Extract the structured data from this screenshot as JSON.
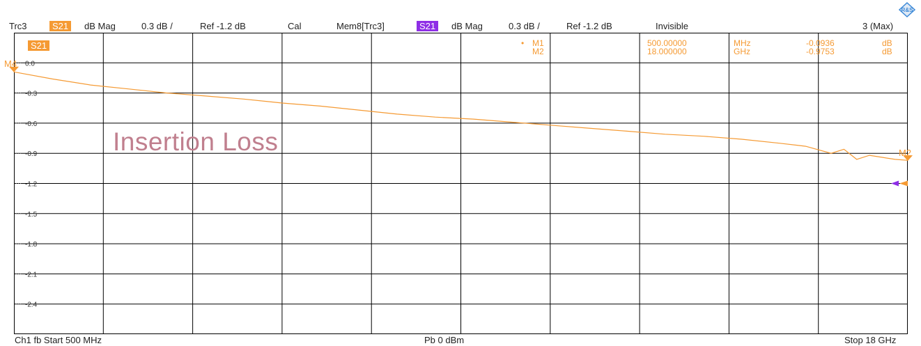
{
  "header": {
    "trace": "Trc3",
    "trace_param": "S21",
    "trace_format": "dB Mag",
    "trace_scale": "0.3 dB /",
    "trace_ref": "Ref -1.2 dB",
    "cal": "Cal",
    "mem": "Mem8[Trc3]",
    "mem_param": "S21",
    "mem_format": "dB Mag",
    "mem_scale": "0.3 dB /",
    "mem_ref": "Ref -1.2 dB",
    "visibility": "Invisible",
    "max_count": "3 (Max)"
  },
  "plot_label": "S21",
  "watermark": "Insertion Loss",
  "markers": {
    "m1": {
      "label": "M1",
      "bullet": "•",
      "freq": "500.00000",
      "freq_unit": "MHz",
      "value": "-0.0936",
      "value_unit": "dB"
    },
    "m2": {
      "label": "M2",
      "freq": "18.000000",
      "freq_unit": "GHz",
      "value": "-0.9753",
      "value_unit": "dB"
    },
    "left_label": "M4",
    "right_label": "M2"
  },
  "footer": {
    "left": "Ch1  fb  Start  500 MHz",
    "center": "Pb   0 dBm",
    "right": "Stop  18 GHz"
  },
  "colors": {
    "trace": "#f59a33",
    "trace_badge": "#f59a33",
    "mem_badge": "#8e2ee6",
    "grid": "#000000",
    "watermark": "#c07f8e"
  },
  "chart_data": {
    "type": "line",
    "title": "",
    "xlabel": "",
    "ylabel": "",
    "x_unit": "GHz",
    "xlim": [
      0.5,
      18.0
    ],
    "ylim": [
      -2.7,
      0.3
    ],
    "y_ticks": [
      0.0,
      -0.3,
      -0.6,
      -0.9,
      -1.2,
      -1.5,
      -1.8,
      -2.1,
      -2.4
    ],
    "y_tick_labels": [
      "0.0",
      "-0.3",
      "-0.6",
      "-0.9",
      "-1.2",
      "-1.5",
      "-1.8",
      "-2.1",
      "-2.4"
    ],
    "grid": true,
    "series": [
      {
        "name": "S21",
        "x": [
          0.5,
          1.25,
          2.0,
          2.75,
          3.5,
          4.25,
          5.0,
          5.75,
          6.5,
          7.25,
          8.0,
          8.75,
          9.5,
          10.25,
          11.0,
          11.75,
          12.5,
          13.25,
          14.0,
          14.75,
          15.5,
          16.0,
          16.5,
          16.75,
          17.0,
          17.25,
          17.5,
          17.75,
          18.0
        ],
        "y": [
          -0.09,
          -0.16,
          -0.22,
          -0.26,
          -0.3,
          -0.33,
          -0.36,
          -0.4,
          -0.43,
          -0.47,
          -0.51,
          -0.54,
          -0.56,
          -0.59,
          -0.62,
          -0.65,
          -0.68,
          -0.71,
          -0.73,
          -0.76,
          -0.8,
          -0.83,
          -0.9,
          -0.86,
          -0.96,
          -0.92,
          -0.94,
          -0.96,
          -0.97
        ]
      }
    ],
    "markers": [
      {
        "name": "M1",
        "x": 0.5,
        "y": -0.0936
      },
      {
        "name": "M2",
        "x": 18.0,
        "y": -0.9753
      }
    ],
    "reference_level": -1.2
  }
}
